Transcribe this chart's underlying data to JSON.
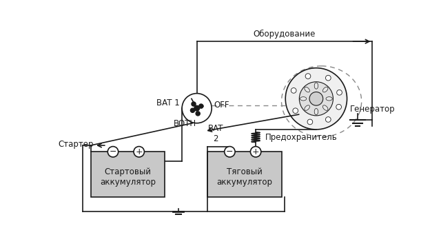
{
  "bg_color": "#ffffff",
  "line_color": "#1a1a1a",
  "box_fill": "#c8c8c8",
  "bat1_label": "BAT 1",
  "off_label": "OFF",
  "both_label": "BOTH",
  "bat2_label": "BAT\n2",
  "generator_label": "Генератор",
  "oborud_label": "Оборудование",
  "starter_label": "Стартер",
  "fuse_label": "Предохранитель",
  "bat_start_label": "Стартовый\nаккумулятор",
  "bat_tow_label": "Тяговый\nаккумулятор",
  "font_size": 8.5
}
